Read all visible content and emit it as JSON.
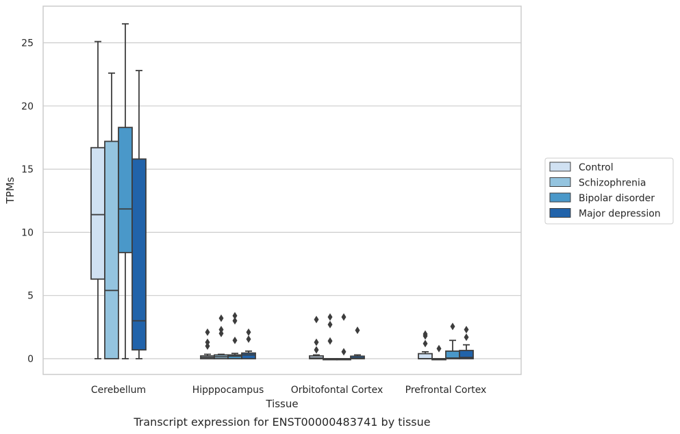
{
  "chart_data": {
    "type": "box",
    "xlabel": "Tissue",
    "ylabel": "TPMs",
    "caption": "Transcript expression for ENST00000483741 by tissue",
    "ylim": [
      -1.2,
      27.5
    ],
    "yticks": [
      0,
      5,
      10,
      15,
      20,
      25
    ],
    "grid": "horizontal",
    "legend_position": "right",
    "categories": [
      "Cerebellum",
      "Hipppocampus",
      "Orbitofontal Cortex",
      "Prefrontal Cortex"
    ],
    "series": [
      {
        "name": "Control",
        "color": "#d0e1f2",
        "boxes": [
          {
            "min": 0,
            "q1": 6.3,
            "median": 11.4,
            "q3": 16.7,
            "max": 25.1,
            "outliers": []
          },
          {
            "min": 0,
            "q1": 0.0,
            "median": 0.1,
            "q3": 0.22,
            "max": 0.35,
            "outliers": [
              1.0,
              1.3,
              2.1
            ]
          },
          {
            "min": 0,
            "q1": 0.0,
            "median": 0.05,
            "q3": 0.22,
            "max": 0.3,
            "outliers": [
              0.7,
              1.3,
              3.1
            ]
          },
          {
            "min": 0,
            "q1": 0.0,
            "median": 0.0,
            "q3": 0.4,
            "max": 0.55,
            "outliers": [
              1.2,
              1.8,
              1.95
            ]
          }
        ]
      },
      {
        "name": "Schizophrenia",
        "color": "#94c4df",
        "boxes": [
          {
            "min": 0,
            "q1": 0.0,
            "median": 5.4,
            "q3": 17.2,
            "max": 22.6,
            "outliers": []
          },
          {
            "min": 0,
            "q1": 0.0,
            "median": 0.15,
            "q3": 0.3,
            "max": 0.35,
            "outliers": [
              2.0,
              2.3,
              3.2
            ]
          },
          {
            "min": 0,
            "q1": 0.0,
            "median": 0.0,
            "q3": 0.0,
            "max": 0.0,
            "outliers": [
              1.4,
              2.7,
              3.3
            ]
          },
          {
            "min": 0,
            "q1": 0.0,
            "median": 0.0,
            "q3": 0.0,
            "max": 0.0,
            "outliers": [
              0.8
            ]
          }
        ]
      },
      {
        "name": "Bipolar disorder",
        "color": "#4a98c9",
        "boxes": [
          {
            "min": 0,
            "q1": 8.4,
            "median": 11.85,
            "q3": 18.3,
            "max": 26.5,
            "outliers": []
          },
          {
            "min": 0,
            "q1": 0.0,
            "median": 0.2,
            "q3": 0.3,
            "max": 0.42,
            "outliers": [
              1.45,
              3.0,
              3.4
            ]
          },
          {
            "min": 0,
            "q1": 0.0,
            "median": 0.0,
            "q3": 0.0,
            "max": 0.0,
            "outliers": [
              0.55,
              3.3
            ]
          },
          {
            "min": 0,
            "q1": 0.0,
            "median": 0.05,
            "q3": 0.6,
            "max": 1.45,
            "outliers": [
              2.55
            ]
          }
        ]
      },
      {
        "name": "Major depression",
        "color": "#2163aa",
        "boxes": [
          {
            "min": 0,
            "q1": 0.7,
            "median": 3.0,
            "q3": 15.8,
            "max": 22.8,
            "outliers": []
          },
          {
            "min": 0,
            "q1": 0.0,
            "median": 0.3,
            "q3": 0.45,
            "max": 0.6,
            "outliers": [
              1.55,
              2.1
            ]
          },
          {
            "min": 0,
            "q1": 0.0,
            "median": 0.05,
            "q3": 0.2,
            "max": 0.3,
            "outliers": [
              2.25
            ]
          },
          {
            "min": 0,
            "q1": 0.0,
            "median": 0.1,
            "q3": 0.65,
            "max": 1.1,
            "outliers": [
              1.7,
              2.3
            ]
          }
        ]
      }
    ]
  }
}
